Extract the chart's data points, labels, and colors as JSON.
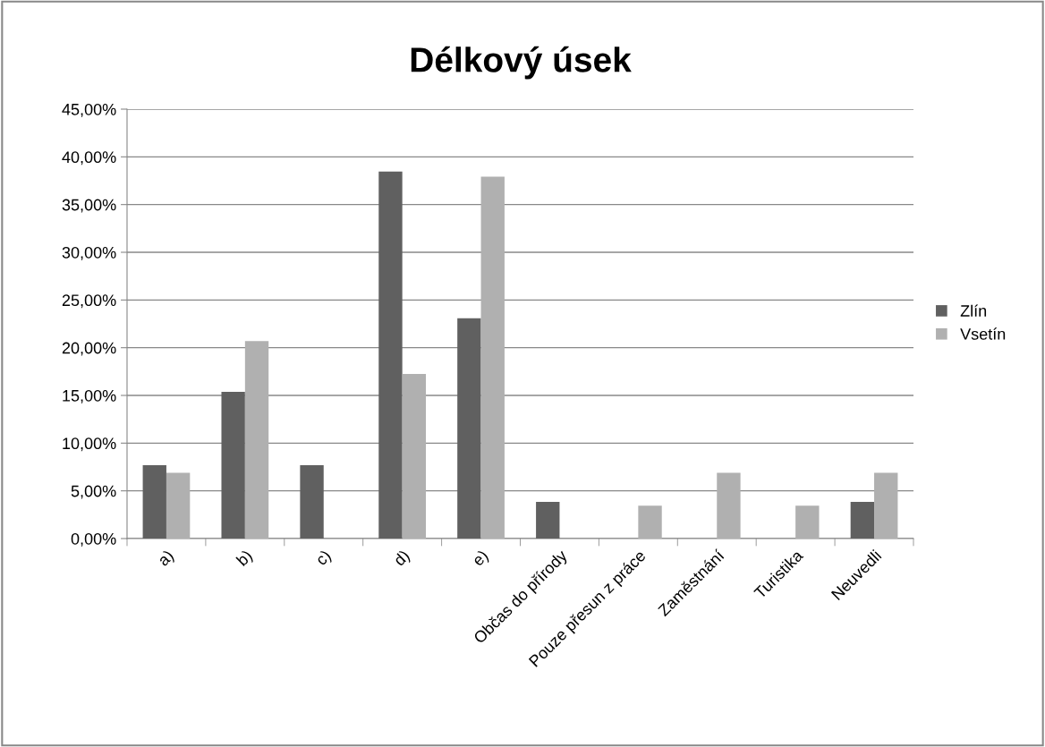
{
  "chart_data": {
    "type": "bar",
    "title": "Délkový úsek",
    "categories": [
      "a)",
      "b)",
      "c)",
      "d)",
      "e)",
      "Občas do přírody",
      "Pouze přesun z práce",
      "Zaměstnání",
      "Turistika",
      "Neuvedli"
    ],
    "series": [
      {
        "name": "Zlín",
        "color": "#606060",
        "values": [
          7.69,
          15.38,
          7.69,
          38.46,
          23.08,
          3.85,
          0,
          0,
          0,
          3.85
        ]
      },
      {
        "name": "Vsetín",
        "color": "#b0b0b0",
        "values": [
          6.9,
          20.69,
          0,
          17.24,
          37.93,
          0,
          3.45,
          6.9,
          3.45,
          6.9
        ]
      }
    ],
    "ylim": [
      0,
      45
    ],
    "yticks": [
      {
        "value": 0,
        "label": "0,00%"
      },
      {
        "value": 5,
        "label": "5,00%"
      },
      {
        "value": 10,
        "label": "10,00%"
      },
      {
        "value": 15,
        "label": "15,00%"
      },
      {
        "value": 20,
        "label": "20,00%"
      },
      {
        "value": 25,
        "label": "25,00%"
      },
      {
        "value": 30,
        "label": "30,00%"
      },
      {
        "value": 35,
        "label": "35,00%"
      },
      {
        "value": 40,
        "label": "40,00%"
      },
      {
        "value": 45,
        "label": "45,00%"
      }
    ],
    "grid": "y",
    "legend": "right"
  }
}
